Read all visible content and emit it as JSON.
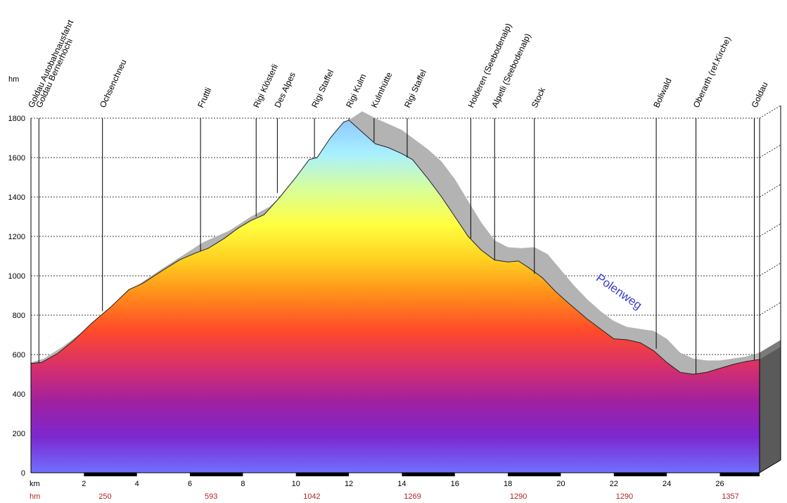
{
  "chart_data": {
    "type": "area",
    "ylabel": "hm",
    "xlabel": "km",
    "hm_row_label": "hm",
    "ylim": [
      0,
      1800
    ],
    "xlim": [
      0,
      27.5
    ],
    "yticks": [
      0,
      200,
      400,
      600,
      800,
      1000,
      1200,
      1400,
      1600,
      1800
    ],
    "xticks": [
      2,
      4,
      6,
      8,
      10,
      12,
      14,
      16,
      18,
      20,
      22,
      24,
      26
    ],
    "grid": true,
    "profile": {
      "x": [
        0,
        0.4,
        1.0,
        1.6,
        2.3,
        3.0,
        3.7,
        4.2,
        5.0,
        5.6,
        6.2,
        6.7,
        7.3,
        7.8,
        8.3,
        8.8,
        9.4,
        10.0,
        10.5,
        10.8,
        11.3,
        11.8,
        12.0,
        12.5,
        13.0,
        13.5,
        14.0,
        14.4,
        15.0,
        15.5,
        16.0,
        16.5,
        17.0,
        17.5,
        18.0,
        18.4,
        18.8,
        19.3,
        19.8,
        20.3,
        21.0,
        21.6,
        22.0,
        22.5,
        23.0,
        23.5,
        24.0,
        24.5,
        25.0,
        25.5,
        26.0,
        26.5,
        27.0,
        27.5
      ],
      "y": [
        555,
        560,
        605,
        670,
        760,
        840,
        930,
        960,
        1030,
        1080,
        1115,
        1140,
        1190,
        1240,
        1280,
        1310,
        1400,
        1500,
        1590,
        1600,
        1700,
        1780,
        1790,
        1730,
        1670,
        1650,
        1620,
        1590,
        1490,
        1400,
        1300,
        1200,
        1130,
        1080,
        1070,
        1075,
        1040,
        990,
        920,
        860,
        780,
        720,
        680,
        675,
        660,
        620,
        560,
        510,
        500,
        510,
        530,
        550,
        565,
        575
      ]
    },
    "variant": {
      "label": "Polenweg",
      "x": [
        0,
        0.5,
        1.2,
        2.0,
        3.0,
        4.0,
        5.0,
        6.5,
        7.5,
        8.3,
        9.0,
        10.0,
        10.8,
        11.5,
        12.0,
        12.5,
        13.0,
        13.5,
        14.0,
        14.5,
        15.0,
        15.5,
        16.0,
        16.5,
        17.0,
        17.5,
        18.0,
        18.5,
        19.0,
        19.5,
        20.0,
        20.5,
        21.0,
        21.5,
        22.0,
        22.5,
        23.0,
        23.5,
        24.0,
        24.5,
        25.0,
        25.5,
        26.0,
        26.5,
        27.0,
        27.5
      ],
      "y": [
        560,
        580,
        640,
        720,
        840,
        950,
        1040,
        1170,
        1230,
        1300,
        1350,
        1470,
        1580,
        1690,
        1790,
        1835,
        1800,
        1770,
        1740,
        1690,
        1640,
        1580,
        1490,
        1380,
        1270,
        1180,
        1145,
        1140,
        1145,
        1110,
        1030,
        950,
        880,
        820,
        770,
        740,
        730,
        720,
        680,
        610,
        580,
        570,
        570,
        580,
        590,
        610
      ]
    },
    "waypoints": [
      {
        "name": "Goldau Autobahnausfahrt",
        "km": 0.0,
        "alt": 555
      },
      {
        "name": "Goldau Bernerhöchi",
        "km": 0.3,
        "alt": 560
      },
      {
        "name": "Ochsenchneu",
        "km": 2.7,
        "alt": 820
      },
      {
        "name": "Fruttli",
        "km": 6.4,
        "alt": 1125
      },
      {
        "name": "Rigi Klösterli",
        "km": 8.5,
        "alt": 1300
      },
      {
        "name": "Des Alpes",
        "km": 9.3,
        "alt": 1420
      },
      {
        "name": "Rigi Staffel",
        "km": 10.7,
        "alt": 1600
      },
      {
        "name": "Rigi Kulm",
        "km": 12.0,
        "alt": 1790
      },
      {
        "name": "Kulmhütte",
        "km": 12.95,
        "alt": 1680
      },
      {
        "name": "Rigi Staffel",
        "km": 14.2,
        "alt": 1600
      },
      {
        "name": "Holderen (Seebodenalp)",
        "km": 16.6,
        "alt": 1190
      },
      {
        "name": "Alpetli (Seebodenalp)",
        "km": 17.5,
        "alt": 1080
      },
      {
        "name": "Stock",
        "km": 19.0,
        "alt": 1010
      },
      {
        "name": "Boliwald",
        "km": 23.6,
        "alt": 630
      },
      {
        "name": "Oberarth (ref.Kirche)",
        "km": 25.1,
        "alt": 500
      },
      {
        "name": "Goldau",
        "km": 27.3,
        "alt": 570
      }
    ],
    "cumulative_ascent": [
      {
        "km": 2.8,
        "value": "250"
      },
      {
        "km": 6.8,
        "value": "593"
      },
      {
        "km": 10.6,
        "value": "1042"
      },
      {
        "km": 14.4,
        "value": "1269"
      },
      {
        "km": 18.4,
        "value": "1290"
      },
      {
        "km": 22.4,
        "value": "1290"
      },
      {
        "km": 26.4,
        "value": "1357"
      }
    ],
    "annotations": [
      {
        "text": "Polenweg",
        "km": 21.3,
        "alt": 980
      }
    ],
    "colors": {
      "variant_fill": "#b3b3b3",
      "gradient": [
        "#8ec6ff",
        "#a8f0ff",
        "#d8ff9a",
        "#ffff40",
        "#ffd020",
        "#ff8c1a",
        "#ff4a2a",
        "#d8306a",
        "#a020a0",
        "#7c28d0",
        "#7070ff"
      ]
    }
  }
}
